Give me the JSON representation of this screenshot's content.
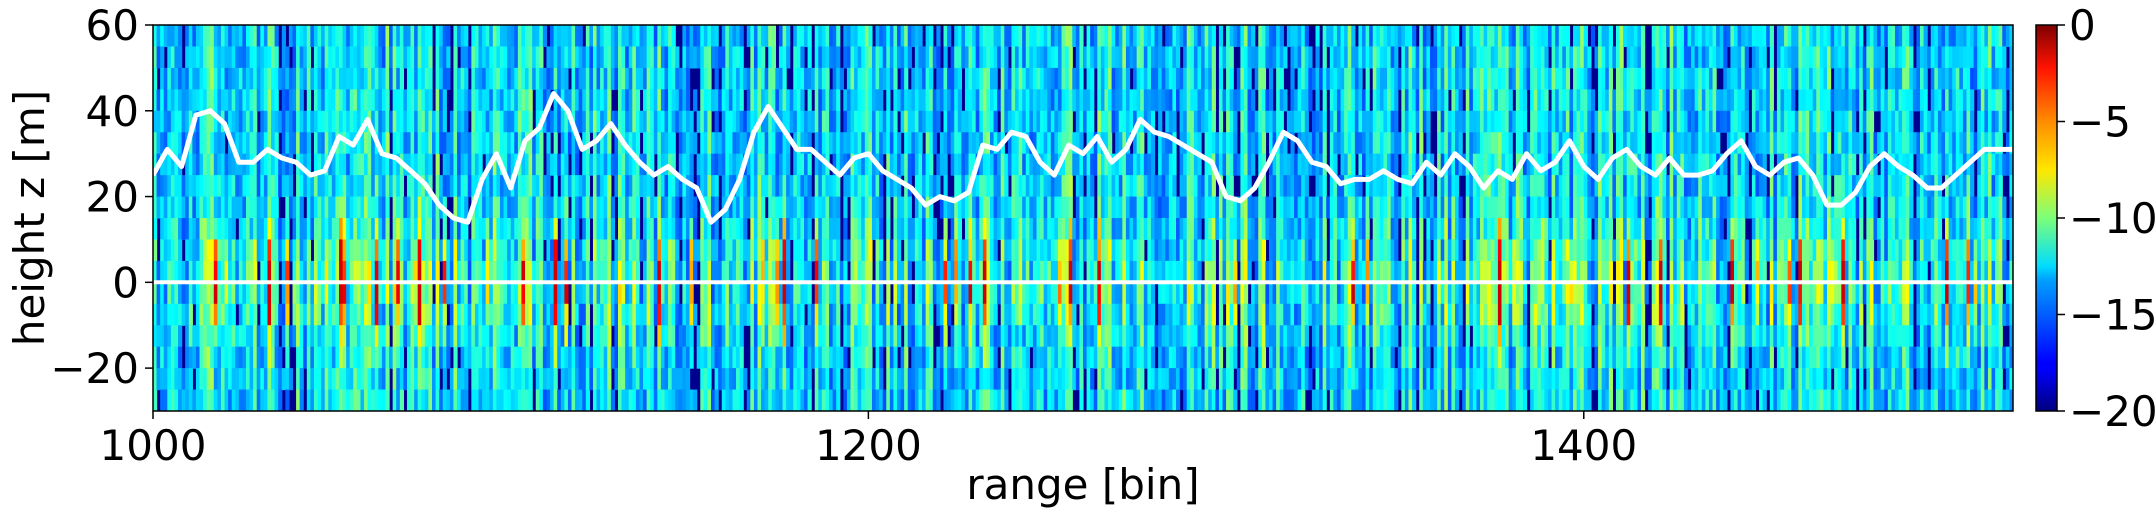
{
  "chart_data": {
    "type": "heatmap",
    "title": "",
    "xlabel": "range [bin]",
    "ylabel": "height z [m]",
    "xlim": [
      1000,
      1520
    ],
    "ylim": [
      -30,
      60
    ],
    "x_ticks": [
      1000,
      1200,
      1400
    ],
    "x_tick_labels": [
      "1000",
      "1200",
      "1400"
    ],
    "y_ticks": [
      -20,
      0,
      20,
      40,
      60
    ],
    "y_tick_labels": [
      "−20",
      "0",
      "20",
      "40",
      "60"
    ],
    "colormap": "jet",
    "colorbar": {
      "range": [
        -20,
        0
      ],
      "ticks": [
        0,
        -5,
        -10,
        -15,
        -20
      ],
      "tick_labels": [
        "0",
        "−5",
        "−10",
        "−15",
        "−20"
      ]
    },
    "grid": false,
    "series": [
      {
        "style": "white-line",
        "x": [
          1000,
          1004,
          1008,
          1012,
          1016,
          1020,
          1024,
          1028,
          1032,
          1036,
          1040,
          1044,
          1048,
          1052,
          1056,
          1060,
          1064,
          1068,
          1072,
          1076,
          1080,
          1084,
          1088,
          1092,
          1096,
          1100,
          1104,
          1108,
          1112,
          1116,
          1120,
          1124,
          1128,
          1132,
          1136,
          1140,
          1144,
          1148,
          1152,
          1156,
          1160,
          1164,
          1168,
          1172,
          1176,
          1180,
          1184,
          1188,
          1192,
          1196,
          1200,
          1204,
          1208,
          1212,
          1216,
          1220,
          1224,
          1228,
          1232,
          1236,
          1240,
          1244,
          1248,
          1252,
          1256,
          1260,
          1264,
          1268,
          1272,
          1276,
          1280,
          1284,
          1288,
          1292,
          1296,
          1300,
          1304,
          1308,
          1312,
          1316,
          1320,
          1324,
          1328,
          1332,
          1336,
          1340,
          1344,
          1348,
          1352,
          1356,
          1360,
          1364,
          1368,
          1372,
          1376,
          1380,
          1384,
          1388,
          1392,
          1396,
          1400,
          1404,
          1408,
          1412,
          1416,
          1420,
          1424,
          1428,
          1432,
          1436,
          1440,
          1444,
          1448,
          1452,
          1456,
          1460,
          1464,
          1468,
          1472,
          1476,
          1480,
          1484,
          1488,
          1492,
          1496,
          1500,
          1504,
          1508,
          1512,
          1516,
          1520
        ],
        "y": [
          25,
          31,
          27,
          39,
          40,
          37,
          28,
          28,
          31,
          29,
          28,
          25,
          26,
          34,
          32,
          38,
          30,
          29,
          26,
          23,
          18,
          15,
          14,
          24,
          30,
          22,
          33,
          36,
          44,
          40,
          31,
          33,
          37,
          32,
          28,
          25,
          27,
          24,
          22,
          14,
          17,
          24,
          35,
          41,
          36,
          31,
          31,
          28,
          25,
          29,
          30,
          26,
          24,
          22,
          18,
          20,
          19,
          21,
          32,
          31,
          35,
          34,
          28,
          25,
          32,
          30,
          34,
          28,
          31,
          38,
          35,
          34,
          32,
          30,
          28,
          20,
          19,
          22,
          28,
          35,
          33,
          28,
          27,
          23,
          24,
          24,
          26,
          24,
          23,
          28,
          25,
          30,
          27,
          22,
          26,
          24,
          30,
          26,
          28,
          33,
          27,
          24,
          29,
          31,
          27,
          25,
          29,
          25,
          25,
          26,
          30,
          33,
          27,
          25,
          28,
          29,
          25,
          18,
          18,
          21,
          27,
          30,
          27,
          25,
          22,
          22,
          25,
          28,
          31,
          31,
          31
        ]
      },
      {
        "style": "white-line",
        "x": [
          1000,
          1520
        ],
        "y": [
          0,
          0
        ]
      }
    ]
  }
}
